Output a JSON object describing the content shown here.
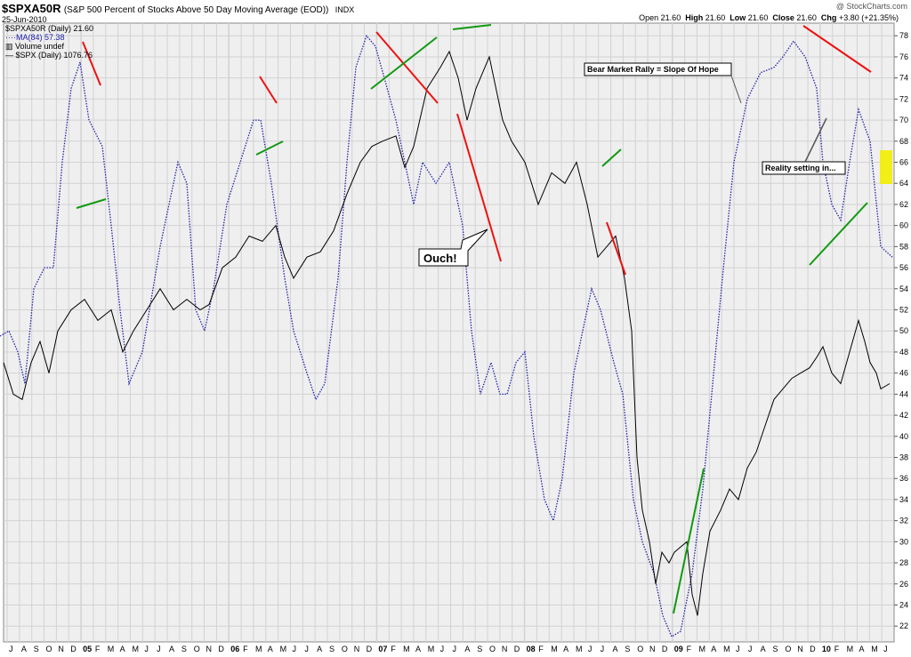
{
  "header": {
    "symbol": "$SPXA50R",
    "description": "(S&P 500 Percent of Stocks Above 50 Day Moving Average (EOD))",
    "exchange": "INDX",
    "date": "25-Jun-2010",
    "watermark": "@ StockCharts.com",
    "ohlc": {
      "open_label": "Open",
      "open": "21.60",
      "high_label": "High",
      "high": "21.60",
      "low_label": "Low",
      "low": "21.60",
      "close_label": "Close",
      "close": "21.60",
      "chg_label": "Chg",
      "chg": "+3.80 (+21.35%)"
    }
  },
  "legend": {
    "main": "$SPXA50R (Daily) 21.60",
    "ma": "MA(84) 57.38",
    "volume": "Volume undef",
    "spx": "$SPX (Daily) 1076.76"
  },
  "colors": {
    "panel_bg": "#efefef",
    "grid": "#d2d2d2",
    "ma_line": "#2222aa",
    "price_line": "#000000",
    "red_trend": "#ee1111",
    "green_trend": "#119911",
    "highlight": "#f2ee00"
  },
  "chart_data": {
    "type": "line",
    "y_ticks": [
      22,
      24,
      26,
      28,
      30,
      32,
      34,
      36,
      38,
      40,
      42,
      44,
      46,
      48,
      50,
      52,
      54,
      56,
      58,
      60,
      62,
      64,
      66,
      68,
      70,
      72,
      74,
      76,
      78
    ],
    "ylim": [
      20.5,
      79.2
    ],
    "x_tick_labels": [
      "J",
      "A",
      "S",
      "O",
      "N",
      "D",
      "05",
      "F",
      "M",
      "A",
      "M",
      "J",
      "J",
      "A",
      "S",
      "O",
      "N",
      "D",
      "06",
      "F",
      "M",
      "A",
      "M",
      "J",
      "J",
      "A",
      "S",
      "O",
      "N",
      "D",
      "07",
      "F",
      "M",
      "A",
      "M",
      "J",
      "J",
      "A",
      "S",
      "O",
      "N",
      "D",
      "08",
      "F",
      "M",
      "A",
      "M",
      "J",
      "J",
      "A",
      "S",
      "O",
      "N",
      "D",
      "09",
      "F",
      "M",
      "A",
      "M",
      "J",
      "J",
      "A",
      "S",
      "O",
      "N",
      "D",
      "10",
      "F",
      "M",
      "A",
      "M",
      "J"
    ],
    "series": [
      {
        "name": "MA(84)",
        "style": "dotted",
        "points": [
          [
            0,
            49.5
          ],
          [
            10,
            50
          ],
          [
            20,
            48
          ],
          [
            28,
            45
          ],
          [
            38,
            54
          ],
          [
            50,
            56
          ],
          [
            60,
            56
          ],
          [
            70,
            66
          ],
          [
            80,
            73
          ],
          [
            90,
            75.5
          ],
          [
            100,
            70
          ],
          [
            115,
            67.5
          ],
          [
            125,
            60
          ],
          [
            135,
            52
          ],
          [
            145,
            45
          ],
          [
            160,
            48
          ],
          [
            180,
            58
          ],
          [
            200,
            66
          ],
          [
            210,
            64
          ],
          [
            220,
            52
          ],
          [
            230,
            50
          ],
          [
            240,
            54
          ],
          [
            255,
            62
          ],
          [
            270,
            66
          ],
          [
            285,
            70
          ],
          [
            293,
            70
          ],
          [
            305,
            64
          ],
          [
            320,
            55
          ],
          [
            330,
            50
          ],
          [
            345,
            46
          ],
          [
            355,
            43.5
          ],
          [
            365,
            45
          ],
          [
            380,
            55
          ],
          [
            390,
            66
          ],
          [
            400,
            75
          ],
          [
            412,
            78
          ],
          [
            422,
            77
          ],
          [
            432,
            74
          ],
          [
            445,
            70
          ],
          [
            455,
            66
          ],
          [
            465,
            62
          ],
          [
            475,
            66
          ],
          [
            490,
            64
          ],
          [
            505,
            66
          ],
          [
            520,
            60
          ],
          [
            530,
            50
          ],
          [
            540,
            44
          ],
          [
            552,
            47
          ],
          [
            562,
            44
          ],
          [
            570,
            44
          ],
          [
            580,
            47
          ],
          [
            590,
            48
          ],
          [
            600,
            40
          ],
          [
            612,
            34
          ],
          [
            622,
            32
          ],
          [
            632,
            36
          ],
          [
            645,
            46
          ],
          [
            655,
            50
          ],
          [
            665,
            54
          ],
          [
            675,
            52
          ],
          [
            690,
            47
          ],
          [
            700,
            44
          ],
          [
            712,
            34
          ],
          [
            722,
            30
          ],
          [
            735,
            27
          ],
          [
            745,
            23
          ],
          [
            755,
            21
          ],
          [
            765,
            21.5
          ],
          [
            778,
            27
          ],
          [
            790,
            35
          ],
          [
            800,
            44
          ],
          [
            812,
            55
          ],
          [
            825,
            66
          ],
          [
            840,
            72
          ],
          [
            855,
            74.5
          ],
          [
            870,
            75
          ],
          [
            880,
            76
          ],
          [
            892,
            77.5
          ],
          [
            905,
            76
          ],
          [
            918,
            73
          ],
          [
            925,
            66
          ],
          [
            935,
            62
          ],
          [
            945,
            60.5
          ],
          [
            955,
            66
          ],
          [
            965,
            71
          ],
          [
            978,
            68
          ],
          [
            990,
            58
          ],
          [
            1003,
            57
          ]
        ]
      },
      {
        "name": "$SPX (Daily)",
        "style": "solid",
        "points": [
          [
            4,
            47
          ],
          [
            15,
            44
          ],
          [
            25,
            43.5
          ],
          [
            35,
            47
          ],
          [
            45,
            49
          ],
          [
            55,
            46
          ],
          [
            65,
            50
          ],
          [
            80,
            52
          ],
          [
            95,
            53
          ],
          [
            110,
            51
          ],
          [
            125,
            52
          ],
          [
            138,
            48
          ],
          [
            150,
            50
          ],
          [
            165,
            52
          ],
          [
            180,
            54
          ],
          [
            195,
            52
          ],
          [
            210,
            53
          ],
          [
            225,
            52
          ],
          [
            235,
            52.5
          ],
          [
            250,
            56
          ],
          [
            265,
            57
          ],
          [
            280,
            59
          ],
          [
            295,
            58.5
          ],
          [
            310,
            60
          ],
          [
            320,
            57
          ],
          [
            330,
            55
          ],
          [
            345,
            57
          ],
          [
            360,
            57.5
          ],
          [
            375,
            59.5
          ],
          [
            390,
            63
          ],
          [
            405,
            66
          ],
          [
            418,
            67.5
          ],
          [
            430,
            68
          ],
          [
            445,
            68.5
          ],
          [
            455,
            65.5
          ],
          [
            465,
            67.5
          ],
          [
            480,
            73
          ],
          [
            495,
            75
          ],
          [
            505,
            76.5
          ],
          [
            515,
            74
          ],
          [
            525,
            70
          ],
          [
            535,
            73
          ],
          [
            550,
            76
          ],
          [
            565,
            70
          ],
          [
            575,
            68
          ],
          [
            590,
            66
          ],
          [
            605,
            62
          ],
          [
            620,
            65
          ],
          [
            635,
            64
          ],
          [
            648,
            66
          ],
          [
            660,
            62
          ],
          [
            672,
            57
          ],
          [
            682,
            58
          ],
          [
            692,
            59
          ],
          [
            702,
            55
          ],
          [
            710,
            50
          ],
          [
            716,
            38
          ],
          [
            722,
            33
          ],
          [
            730,
            30
          ],
          [
            737,
            26
          ],
          [
            744,
            29
          ],
          [
            752,
            28
          ],
          [
            758,
            29
          ],
          [
            765,
            29.5
          ],
          [
            772,
            30
          ],
          [
            778,
            25
          ],
          [
            784,
            23
          ],
          [
            790,
            27
          ],
          [
            798,
            31
          ],
          [
            810,
            33
          ],
          [
            820,
            35
          ],
          [
            830,
            34
          ],
          [
            840,
            37
          ],
          [
            850,
            38.5
          ],
          [
            860,
            41
          ],
          [
            870,
            43.5
          ],
          [
            880,
            44.5
          ],
          [
            890,
            45.5
          ],
          [
            900,
            46
          ],
          [
            910,
            46.5
          ],
          [
            918,
            47.5
          ],
          [
            925,
            48.5
          ],
          [
            935,
            46
          ],
          [
            945,
            45
          ],
          [
            955,
            48
          ],
          [
            965,
            51
          ],
          [
            972,
            49
          ],
          [
            978,
            47
          ],
          [
            985,
            46
          ],
          [
            990,
            44.5
          ],
          [
            1000,
            45
          ]
        ]
      }
    ],
    "annotations": [
      {
        "text": "Ouch!",
        "style": "callout-box"
      },
      {
        "text": "Bear Market Rally = Slope Of Hope",
        "style": "label-box"
      },
      {
        "text": "Reality setting in...",
        "style": "label-box"
      }
    ]
  }
}
